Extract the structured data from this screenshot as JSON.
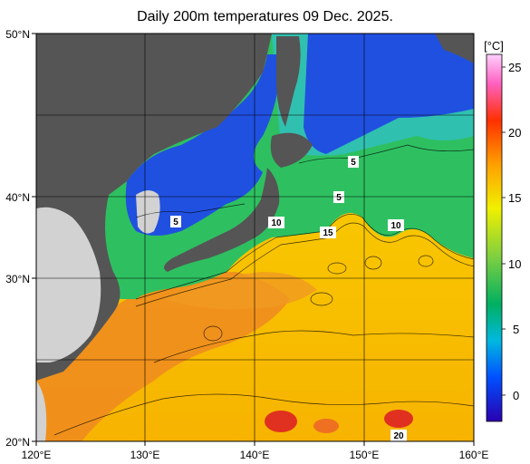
{
  "title": "Daily 200m temperatures 09 Dec. 2025.",
  "unit_label": "[°C]",
  "x_axis": {
    "ticks": [
      "120°E",
      "130°E",
      "140°E",
      "150°E",
      "160°E"
    ]
  },
  "y_axis": {
    "ticks": [
      "50°N",
      "40°N",
      "30°N",
      "20°N"
    ]
  },
  "colorbar": {
    "range": [
      -3,
      27
    ],
    "labels": [
      "25",
      "20",
      "15",
      "10",
      "5",
      "0"
    ],
    "colors": [
      "#2a00b0",
      "#0060ff",
      "#00b8e0",
      "#00b060",
      "#80d040",
      "#f0f000",
      "#ffa000",
      "#ff3000",
      "#ff60c0",
      "#ffd0ff"
    ]
  },
  "contour_labels": [
    "5",
    "5",
    "5",
    "10",
    "10",
    "15",
    "20"
  ],
  "colors": {
    "land": "#d2d2d2",
    "dark_land": "#555555",
    "cold": "#1a3cd8",
    "mid": "#1fbf60",
    "warm": "#f5c400",
    "hot": "#ee7a18"
  }
}
